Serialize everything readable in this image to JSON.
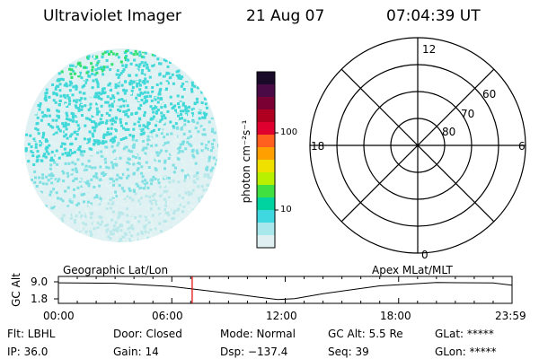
{
  "header": {
    "instrument": "Ultraviolet Imager",
    "date": "21 Aug 07",
    "time": "07:04:39 UT"
  },
  "colorbar": {
    "unit_label": "photon cm⁻²s⁻¹",
    "ticks": [
      "100",
      "10"
    ],
    "colors": [
      "#1a0a2a",
      "#4a0a46",
      "#7a0034",
      "#b00020",
      "#e00030",
      "#ff6020",
      "#ffa000",
      "#f0e000",
      "#b8f000",
      "#40e040",
      "#00d2a0",
      "#40d8e0",
      "#a8e8ec",
      "#e0f0f2"
    ]
  },
  "polar_grid": {
    "mlt_labels": {
      "top": "12",
      "left": "18",
      "right": "6",
      "bottom": "0"
    },
    "lat_labels": [
      "60",
      "70",
      "80"
    ]
  },
  "timeline": {
    "y_axis_label": "GC Alt",
    "y_ticks": [
      "9.0",
      "1.8"
    ],
    "left_caption": "Geographic Lat/Lon",
    "right_caption": "Apex MLat/MLT",
    "x_ticks": [
      "00:00",
      "06:00",
      "12:00",
      "18:00",
      "23:59"
    ],
    "current_time_fraction": 0.2949,
    "altitude_curve": {
      "x_hours": [
        0,
        3,
        6,
        9,
        10.5,
        11.6,
        12.5,
        14,
        17,
        20,
        23,
        23.98
      ],
      "y_re": [
        8.6,
        8.4,
        7.0,
        4.2,
        2.6,
        1.5,
        1.9,
        4.0,
        7.3,
        8.7,
        8.5,
        7.6
      ]
    }
  },
  "status": {
    "filter": "Flt: LBHL",
    "ip": "IP: 36.0",
    "door": "Door: Closed",
    "gain": "Gain: 14",
    "mode": "Mode: Normal",
    "dsp": "Dsp: −137.4",
    "gc_alt": "GC Alt: 5.5 Re",
    "seq": "Seq: 39",
    "glat": "GLat: *****",
    "glon": "GLon: *****"
  },
  "accent_colors": {
    "current_time_marker": "#e00000",
    "image_teal": "#40d8d8",
    "image_green": "#30e070"
  }
}
